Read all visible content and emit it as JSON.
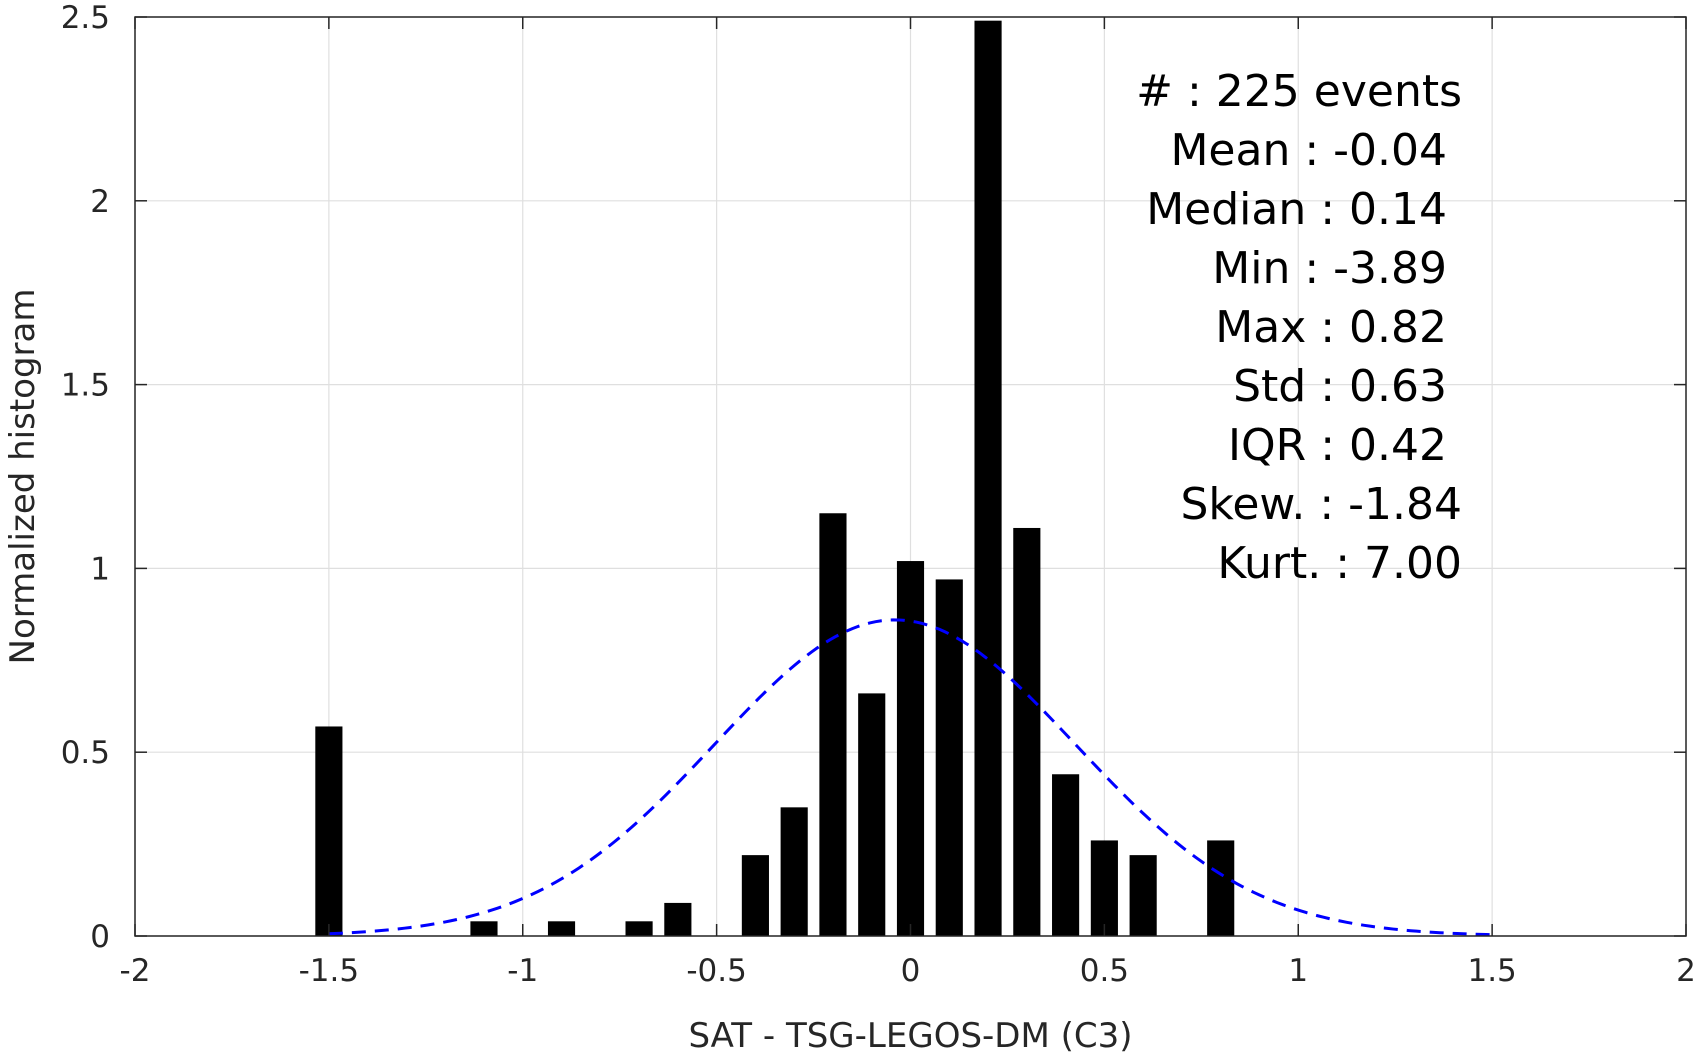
{
  "chart_data": {
    "type": "bar",
    "xlabel": "SAT - TSG-LEGOS-DM (C3)",
    "ylabel": "Normalized histogram",
    "xlim": [
      -2,
      2
    ],
    "ylim": [
      0,
      2.5
    ],
    "xticks": [
      -2,
      -1.5,
      -1,
      -0.5,
      0,
      0.5,
      1,
      1.5,
      2
    ],
    "xtick_labels": [
      "-2",
      "-1.5",
      "-1",
      "-0.5",
      "0",
      "0.5",
      "1",
      "1.5",
      "2"
    ],
    "yticks": [
      0,
      0.5,
      1,
      1.5,
      2,
      2.5
    ],
    "ytick_labels": [
      "0",
      "0.5",
      "1",
      "1.5",
      "2",
      "2.5"
    ],
    "grid": true,
    "bar_width": 0.07,
    "bars": [
      {
        "x": -1.5,
        "value": 0.57
      },
      {
        "x": -1.1,
        "value": 0.04
      },
      {
        "x": -0.9,
        "value": 0.04
      },
      {
        "x": -0.7,
        "value": 0.04
      },
      {
        "x": -0.6,
        "value": 0.09
      },
      {
        "x": -0.4,
        "value": 0.22
      },
      {
        "x": -0.3,
        "value": 0.35
      },
      {
        "x": -0.2,
        "value": 1.15
      },
      {
        "x": -0.1,
        "value": 0.66
      },
      {
        "x": 0.0,
        "value": 1.02
      },
      {
        "x": 0.1,
        "value": 0.97
      },
      {
        "x": 0.2,
        "value": 2.49
      },
      {
        "x": 0.3,
        "value": 1.11
      },
      {
        "x": 0.4,
        "value": 0.44
      },
      {
        "x": 0.5,
        "value": 0.26
      },
      {
        "x": 0.6,
        "value": 0.22
      },
      {
        "x": 0.8,
        "value": 0.26
      }
    ],
    "fit_curve": {
      "style": "dashed",
      "color": "#0000ff",
      "mean": -0.04,
      "std": 0.465,
      "peak": 0.86,
      "x_range": [
        -1.5,
        1.5
      ]
    },
    "bar_color": "#000000",
    "stats": [
      {
        "text": "#  : 225 events"
      },
      {
        "text": "Mean : -0.04"
      },
      {
        "text": "Median : 0.14"
      },
      {
        "text": "Min : -3.89"
      },
      {
        "text": "Max : 0.82"
      },
      {
        "text": "Std : 0.63"
      },
      {
        "text": "IQR : 0.42"
      },
      {
        "text": "Skew. : -1.84"
      },
      {
        "text": "Kurt. : 7.00"
      }
    ]
  }
}
